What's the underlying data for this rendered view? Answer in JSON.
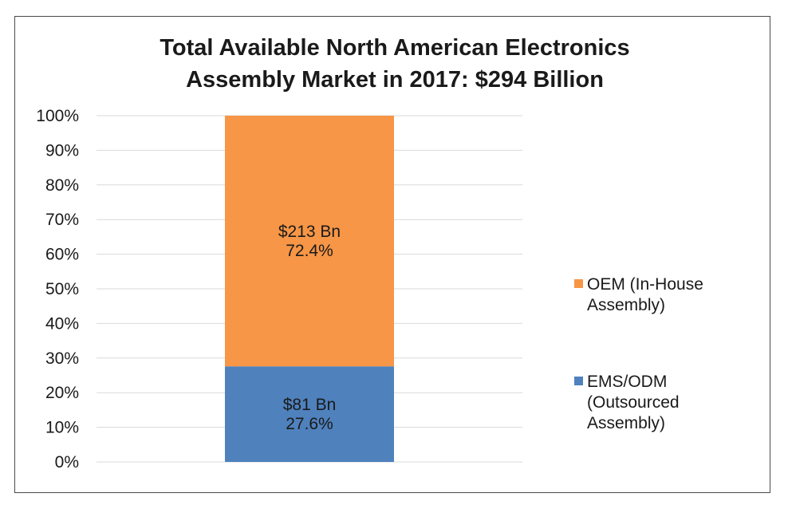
{
  "chart_data": {
    "type": "bar",
    "stacked": true,
    "title_lines": [
      "Total Available North American Electronics",
      "Assembly Market in 2017: $294 Billion"
    ],
    "xlabel": "",
    "ylabel": "",
    "ylim": [
      0,
      100
    ],
    "y_ticks": [
      "0%",
      "10%",
      "20%",
      "30%",
      "40%",
      "50%",
      "60%",
      "70%",
      "80%",
      "90%",
      "100%"
    ],
    "grid": true,
    "legend_position": "right",
    "categories": [
      ""
    ],
    "series": [
      {
        "name": "EMS/ODM (Outsourced Assembly)",
        "legend_lines": [
          "EMS/ODM",
          "(Outsourced",
          "Assembly)"
        ],
        "values": [
          27.6
        ],
        "label_lines": [
          "$81 Bn",
          "27.6%"
        ],
        "color": "#4f81bd"
      },
      {
        "name": "OEM (In-House Assembly)",
        "legend_lines": [
          "OEM (In-House",
          "Assembly)"
        ],
        "values": [
          72.4
        ],
        "label_lines": [
          "$213 Bn",
          "72.4%"
        ],
        "color": "#f79646"
      }
    ]
  }
}
